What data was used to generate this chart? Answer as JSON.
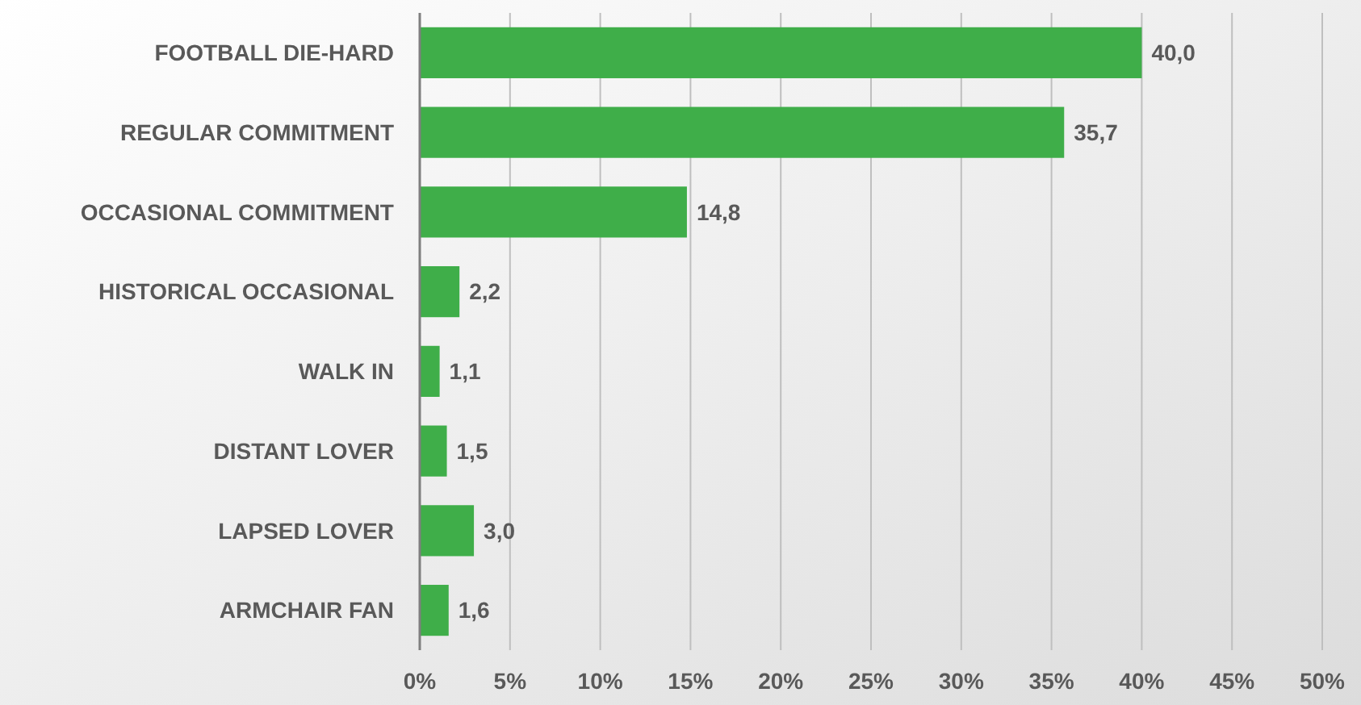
{
  "chart_data": {
    "type": "bar",
    "orientation": "horizontal",
    "categories": [
      "FOOTBALL DIE-HARD",
      "REGULAR COMMITMENT",
      "OCCASIONAL COMMITMENT",
      "HISTORICAL OCCASIONAL",
      "WALK IN",
      "DISTANT LOVER",
      "LAPSED LOVER",
      "ARMCHAIR FAN"
    ],
    "values": [
      40.0,
      35.7,
      14.8,
      2.2,
      1.1,
      1.5,
      3.0,
      1.6
    ],
    "value_labels": [
      "40,0",
      "35,7",
      "14,8",
      "2,2",
      "1,1",
      "1,5",
      "3,0",
      "1,6"
    ],
    "color": "#3fae49",
    "xlim": [
      0,
      50
    ],
    "xticks": [
      {
        "value": 0,
        "label": "0%"
      },
      {
        "value": 5,
        "label": "5%"
      },
      {
        "value": 10,
        "label": "10%"
      },
      {
        "value": 15,
        "label": "15%"
      },
      {
        "value": 20,
        "label": "20%"
      },
      {
        "value": 25,
        "label": "25%"
      },
      {
        "value": 30,
        "label": "30%"
      },
      {
        "value": 35,
        "label": "35%"
      },
      {
        "value": 40,
        "label": "40%"
      },
      {
        "value": 45,
        "label": "45%"
      },
      {
        "value": 50,
        "label": "50%"
      }
    ],
    "grid": "x"
  }
}
